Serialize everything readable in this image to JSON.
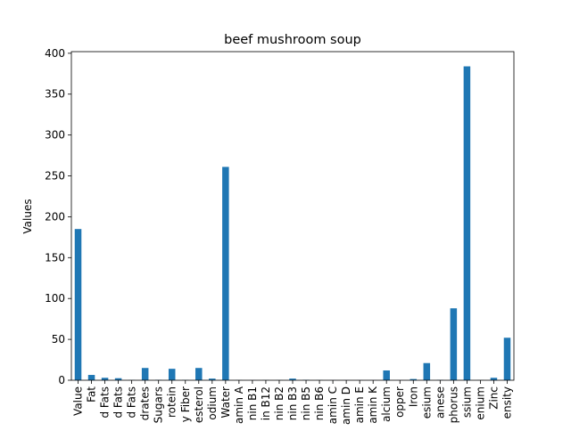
{
  "chart_data": {
    "type": "bar",
    "title": "beef mushroom soup",
    "xlabel": "",
    "ylabel": "Values",
    "ylim": [
      0,
      402
    ],
    "yticks": [
      0,
      50,
      100,
      150,
      200,
      250,
      300,
      350,
      400
    ],
    "grid": false,
    "bar_color": "#1f77b4",
    "categories": [
      "Value",
      "Fat",
      "d Fats",
      "d Fats",
      "d Fats",
      "drates",
      "Sugars",
      "rotein",
      "y Fiber",
      "esterol",
      "odium",
      "Water",
      "amin A",
      "nin B1",
      "in B12",
      "nin B2",
      "nin B3",
      "nin B5",
      "nin B6",
      "amin C",
      "amin D",
      "amin E",
      "amin K",
      "alcium",
      "opper",
      "Iron",
      "esium",
      "anese",
      "phorus",
      "ssium",
      "enium",
      "Zinc",
      "ensity"
    ],
    "values": [
      185,
      6.5,
      3.0,
      2.5,
      0.3,
      15,
      0.5,
      14,
      0.3,
      15,
      2.0,
      261,
      0.2,
      0.1,
      0.2,
      0.2,
      2.0,
      0.5,
      0.2,
      0.1,
      0.1,
      0.1,
      0.1,
      12,
      0.1,
      1.5,
      21,
      0.4,
      88,
      384,
      0.2,
      3.0,
      52
    ]
  }
}
